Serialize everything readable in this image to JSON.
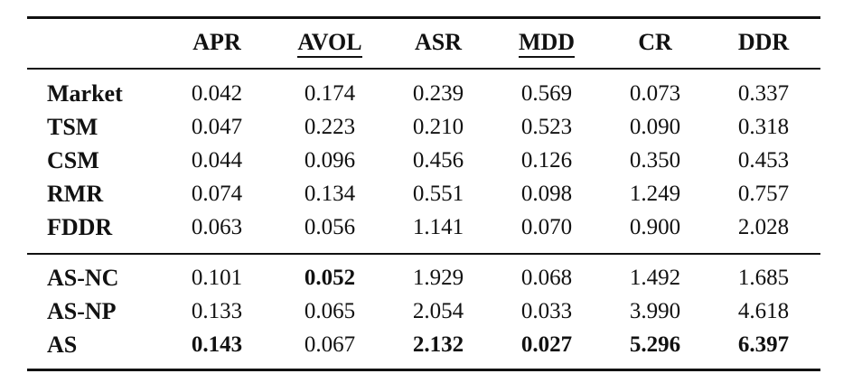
{
  "table": {
    "headers": [
      "APR",
      "AVOL",
      "ASR",
      "MDD",
      "CR",
      "DDR"
    ],
    "underlined_headers": [
      "AVOL",
      "MDD"
    ],
    "groups": [
      {
        "rows": [
          {
            "label": "Market",
            "values": [
              "0.042",
              "0.174",
              "0.239",
              "0.569",
              "0.073",
              "0.337"
            ],
            "bold": []
          },
          {
            "label": "TSM",
            "values": [
              "0.047",
              "0.223",
              "0.210",
              "0.523",
              "0.090",
              "0.318"
            ],
            "bold": []
          },
          {
            "label": "CSM",
            "values": [
              "0.044",
              "0.096",
              "0.456",
              "0.126",
              "0.350",
              "0.453"
            ],
            "bold": []
          },
          {
            "label": "RMR",
            "values": [
              "0.074",
              "0.134",
              "0.551",
              "0.098",
              "1.249",
              "0.757"
            ],
            "bold": []
          },
          {
            "label": "FDDR",
            "values": [
              "0.063",
              "0.056",
              "1.141",
              "0.070",
              "0.900",
              "2.028"
            ],
            "bold": []
          }
        ]
      },
      {
        "rows": [
          {
            "label": "AS-NC",
            "values": [
              "0.101",
              "0.052",
              "1.929",
              "0.068",
              "1.492",
              "1.685"
            ],
            "bold": [
              1
            ]
          },
          {
            "label": "AS-NP",
            "values": [
              "0.133",
              "0.065",
              "2.054",
              "0.033",
              "3.990",
              "4.618"
            ],
            "bold": []
          },
          {
            "label": "AS",
            "values": [
              "0.143",
              "0.067",
              "2.132",
              "0.027",
              "5.296",
              "6.397"
            ],
            "bold": [
              0,
              2,
              3,
              4,
              5
            ]
          }
        ]
      }
    ]
  }
}
